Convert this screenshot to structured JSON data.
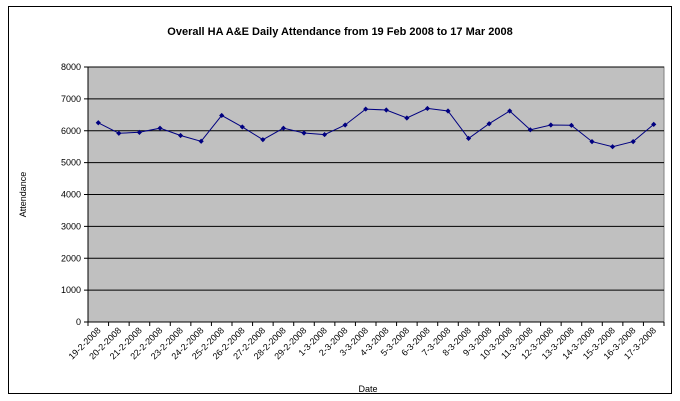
{
  "chart_data": {
    "type": "line",
    "title": "Overall HA A&E Daily Attendance from 19 Feb 2008 to 17 Mar 2008",
    "xlabel": "Date",
    "ylabel": "Attendance",
    "ylim": [
      0,
      8000
    ],
    "yticks": [
      "0",
      "1000",
      "2000",
      "3000",
      "4000",
      "5000",
      "6000",
      "7000",
      "8000"
    ],
    "grid": true,
    "legend": "none",
    "colors": {
      "plot_background": "#c0c0c0",
      "line": "#000080",
      "marker": "#000080",
      "gridline": "#000000"
    },
    "categories": [
      "19-2-2008",
      "20-2-2008",
      "21-2-2008",
      "22-2-2008",
      "23-2-2008",
      "24-2-2008",
      "25-2-2008",
      "26-2-2008",
      "27-2-2008",
      "28-2-2008",
      "29-2-2008",
      "1-3-2008",
      "2-3-2008",
      "3-3-2008",
      "4-3-2008",
      "5-3-2008",
      "6-3-2008",
      "7-3-2008",
      "8-3-2008",
      "9-3-2008",
      "10-3-2008",
      "11-3-2008",
      "12-3-2008",
      "13-3-2008",
      "14-3-2008",
      "15-3-2008",
      "16-3-2008",
      "17-3-2008"
    ],
    "values": [
      6250,
      5920,
      5950,
      6080,
      5850,
      5670,
      6480,
      6120,
      5720,
      6080,
      5930,
      5880,
      6180,
      6680,
      6650,
      6400,
      6700,
      6620,
      5760,
      6220,
      6620,
      6030,
      6180,
      6170,
      5660,
      5500,
      5660,
      6200
    ]
  }
}
